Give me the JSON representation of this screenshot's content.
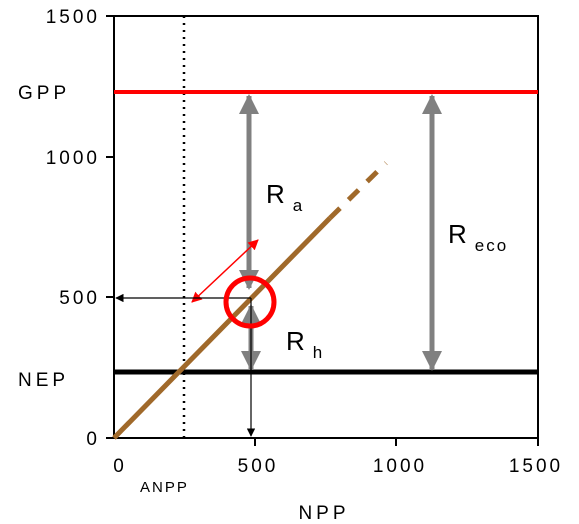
{
  "axes": {
    "x_ticks": [
      "0",
      "500",
      "1000",
      "1500"
    ],
    "y_ticks": [
      "0",
      "500",
      "1000",
      "1500"
    ],
    "x_label": "NPP",
    "anpp_label": "ANPP"
  },
  "levels": {
    "gpp_label": "GPP",
    "nep_label": "NEP",
    "gpp_value": 1220,
    "nep_value": 230,
    "npp_value": 500,
    "anpp_value": 250
  },
  "fluxes": {
    "ra_main": "R",
    "ra_sub": "a",
    "rh_main": "R",
    "rh_sub": "h",
    "reco_main": "R",
    "reco_sub": "eco"
  },
  "colors": {
    "gpp_line": "#ff0000",
    "nep_line": "#000000",
    "npp_line": "#a0692a",
    "flux_arrow": "#808080",
    "highlight": "#ff0000"
  }
}
